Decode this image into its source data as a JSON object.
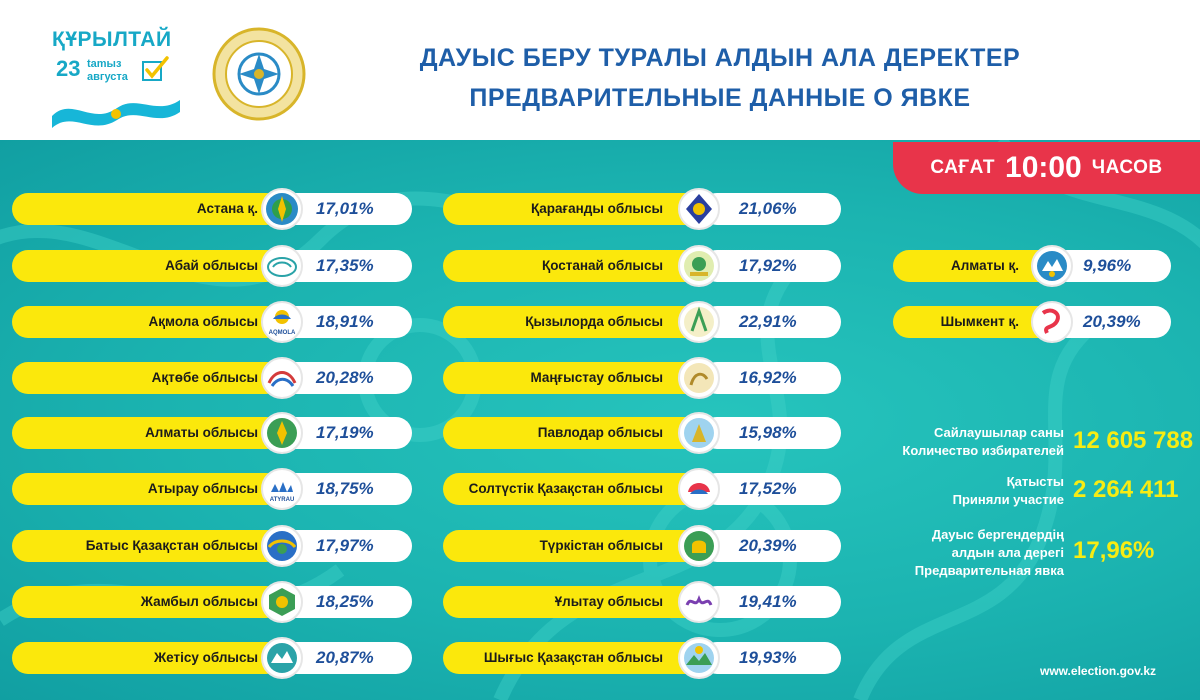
{
  "brand": {
    "title": "ҚҰРЫЛТАЙ",
    "day": "23",
    "month_kz": "tamыз",
    "month_ru": "августа",
    "colors": {
      "primary": "#17a8c6",
      "ribbon": "#17b6d8",
      "check": "#f2c200"
    }
  },
  "emblem": {
    "icon": "election-commission-emblem-icon",
    "color": "#d8b52a"
  },
  "header": {
    "title_kz": "ДАУЫС БЕРУ ТУРАЛЫ АЛДЫН АЛА ДЕРЕКТЕР",
    "title_ru": "ПРЕДВАРИТЕЛЬНЫЕ ДАННЫЕ О ЯВКЕ"
  },
  "time": {
    "word_kz": "САҒАТ",
    "hour": "10:00",
    "word_ru": "ЧАСОВ",
    "color": "#e8344a"
  },
  "regions_left": [
    {
      "name": "Астана қ.",
      "value": "17,01%",
      "icon": "astana-emblem-icon"
    },
    {
      "name": "Абай облысы",
      "value": "17,35%",
      "icon": "abai-region-logo-icon"
    },
    {
      "name": "Ақмола облысы",
      "value": "18,91%",
      "icon": "akmola-region-logo-icon",
      "logo_text": "AQMOLA"
    },
    {
      "name": "Ақтөбе облысы",
      "value": "20,28%",
      "icon": "aktobe-region-logo-icon"
    },
    {
      "name": "Алматы облысы",
      "value": "17,19%",
      "icon": "almaty-region-logo-icon"
    },
    {
      "name": "Атырау облысы",
      "value": "18,75%",
      "icon": "atyrau-region-logo-icon",
      "logo_text": "ATYRAU"
    },
    {
      "name": "Батыс Қазақстан облысы",
      "value": "17,97%",
      "icon": "west-kazakhstan-logo-icon"
    },
    {
      "name": "Жамбыл облысы",
      "value": "18,25%",
      "icon": "zhambyl-region-logo-icon"
    },
    {
      "name": "Жетісу облысы",
      "value": "20,87%",
      "icon": "zhetysu-region-logo-icon"
    }
  ],
  "regions_mid": [
    {
      "name": "Қарағанды облысы",
      "value": "21,06%",
      "icon": "karaganda-region-logo-icon"
    },
    {
      "name": "Қостанай облысы",
      "value": "17,92%",
      "icon": "kostanay-region-logo-icon"
    },
    {
      "name": "Қызылорда облысы",
      "value": "22,91%",
      "icon": "kyzylorda-region-logo-icon"
    },
    {
      "name": "Маңғыстау облысы",
      "value": "16,92%",
      "icon": "mangystau-region-logo-icon"
    },
    {
      "name": "Павлодар облысы",
      "value": "15,98%",
      "icon": "pavlodar-region-logo-icon"
    },
    {
      "name": "Солтүстік Қазақстан облысы",
      "value": "17,52%",
      "icon": "north-kazakhstan-logo-icon"
    },
    {
      "name": "Түркістан облысы",
      "value": "20,39%",
      "icon": "turkistan-region-logo-icon"
    },
    {
      "name": "Ұлытау облысы",
      "value": "19,41%",
      "icon": "ulytau-region-logo-icon"
    },
    {
      "name": "Шығыс Қазақстан облысы",
      "value": "19,93%",
      "icon": "east-kazakhstan-logo-icon"
    }
  ],
  "regions_right": [
    {
      "name": "Алматы қ.",
      "value": "9,96%",
      "icon": "almaty-city-emblem-icon"
    },
    {
      "name": "Шымкент қ.",
      "value": "20,39%",
      "icon": "shymkent-city-logo-icon"
    }
  ],
  "stats": {
    "voters_kz": "Сайлаушылар саны",
    "voters_ru": "Количество избирателей",
    "voters_value": "12 605 788",
    "participated_kz": "Қатысты",
    "participated_ru": "Приняли участие",
    "participated_value": "2 264 411",
    "turnout_kz_1": "Дауыс бергендердің",
    "turnout_kz_2": "алдын ала дерегі",
    "turnout_ru": "Предварительная явка",
    "turnout_value": "17,96%"
  },
  "footer": {
    "url": "www.election.gov.kz"
  },
  "colors": {
    "teal": "#1bb3b0",
    "pill": "#fbe80c",
    "value_text": "#1e4f9a",
    "stat_value": "#f7ec13"
  }
}
